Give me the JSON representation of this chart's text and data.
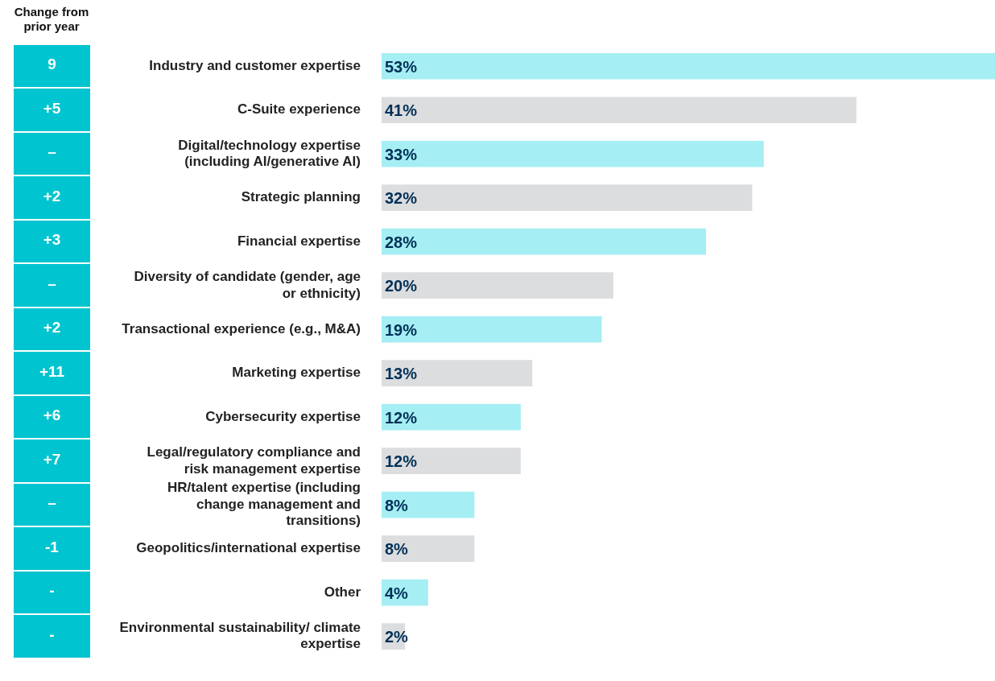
{
  "chart_data": {
    "type": "bar",
    "orientation": "horizontal",
    "tick_labels": "y",
    "categories": [
      "Industry and customer expertise",
      "C-Suite experience",
      "Digital/technology expertise (including AI/generative AI)",
      "Strategic planning",
      "Financial expertise",
      "Diversity of candidate (gender, age or ethnicity)",
      "Transactional experience (e.g., M&A)",
      "Marketing expertise",
      "Cybersecurity expertise",
      "Legal/regulatory compliance and risk management expertise",
      "HR/talent expertise (including change management and transitions)",
      "Geopolitics/international expertise",
      "Other",
      "Environmental sustainability/ climate expertise"
    ],
    "values": [
      53,
      41,
      33,
      32,
      28,
      20,
      19,
      13,
      12,
      12,
      8,
      8,
      4,
      2
    ],
    "colors": [
      "#a5eef3",
      "#dcdddf",
      "#a5eef3",
      "#dcdddf",
      "#a5eef3",
      "#dcdddf",
      "#a5eef3",
      "#dcdddf",
      "#a5eef3",
      "#dcdddf",
      "#a5eef3",
      "#dcdddf",
      "#a5eef3",
      "#dcdddf"
    ],
    "value_labels": [
      "53%",
      "41%",
      "33%",
      "32%",
      "28%",
      "20%",
      "19%",
      "13%",
      "12%",
      "12%",
      "8%",
      "8%",
      "4%",
      "2%"
    ],
    "annotations": [
      "Change from prior year",
      "9",
      "+5",
      "–",
      "+2",
      "+3",
      "–",
      "+2",
      "+11",
      "+6",
      "+7",
      "–",
      "-1",
      "-",
      "-"
    ]
  }
}
